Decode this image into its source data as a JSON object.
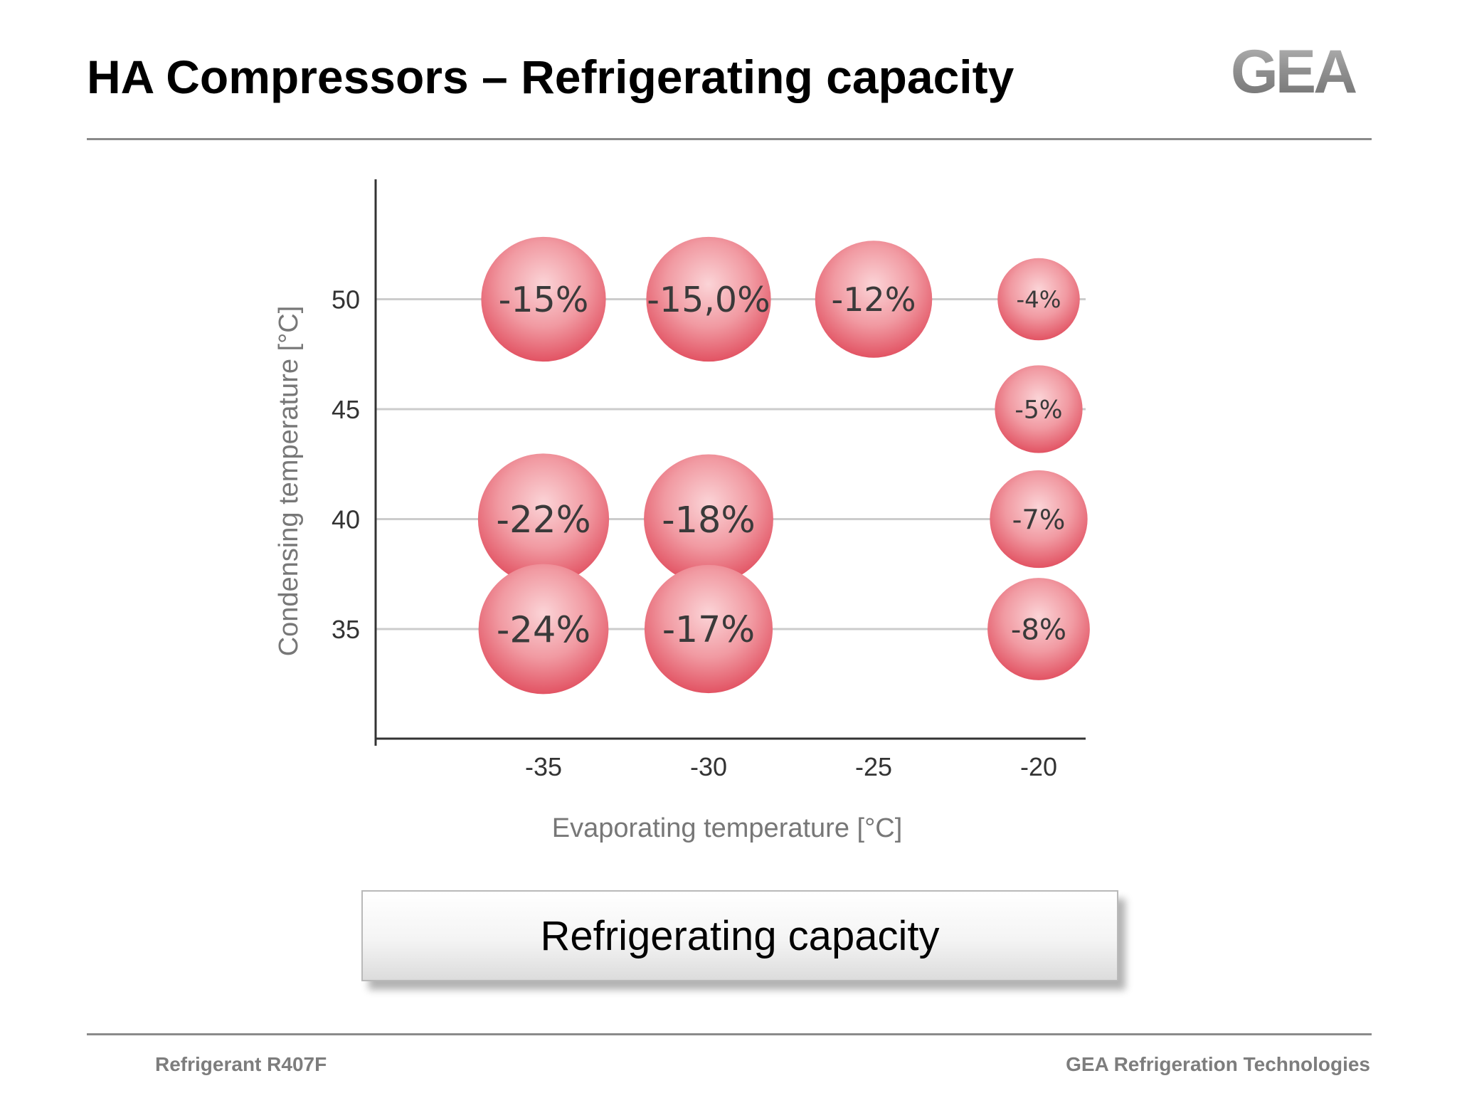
{
  "header": {
    "title": "HA Compressors – Refrigerating capacity",
    "logo_text": "GEA"
  },
  "footer": {
    "left": "Refrigerant R407F",
    "right": "GEA Refrigeration Technologies"
  },
  "legend": {
    "label": "Refrigerating capacity"
  },
  "colors": {
    "bubble": "#e8505f",
    "bubble_light": "#fbd3d6",
    "grid": "#cccccc",
    "axis_label": "#777777",
    "tick_label": "#333333"
  },
  "chart_data": {
    "type": "scatter",
    "xlabel": "Evaporating temperature [°C]",
    "ylabel": "Condensing temperature [°C]",
    "x_ticks": [
      -35,
      -30,
      -25,
      -20
    ],
    "y_ticks": [
      35,
      40,
      45,
      50
    ],
    "xlim": [
      -40,
      -19
    ],
    "ylim": [
      30,
      55
    ],
    "grid": "horizontal",
    "points": [
      {
        "x": -35,
        "y": 50,
        "value": -15,
        "label": "-15%"
      },
      {
        "x": -30,
        "y": 50,
        "value": -15,
        "label": "-15,0%"
      },
      {
        "x": -25,
        "y": 50,
        "value": -12,
        "label": "-12%"
      },
      {
        "x": -20,
        "y": 50,
        "value": -4,
        "label": "-4%"
      },
      {
        "x": -20,
        "y": 45,
        "value": -5,
        "label": "-5%"
      },
      {
        "x": -35,
        "y": 40,
        "value": -22,
        "label": "-22%"
      },
      {
        "x": -30,
        "y": 40,
        "value": -18,
        "label": "-18%"
      },
      {
        "x": -20,
        "y": 40,
        "value": -7,
        "label": "-7%"
      },
      {
        "x": -35,
        "y": 35,
        "value": -24,
        "label": "-24%"
      },
      {
        "x": -30,
        "y": 35,
        "value": -17,
        "label": "-17%"
      },
      {
        "x": -20,
        "y": 35,
        "value": -8,
        "label": "-8%"
      }
    ]
  }
}
